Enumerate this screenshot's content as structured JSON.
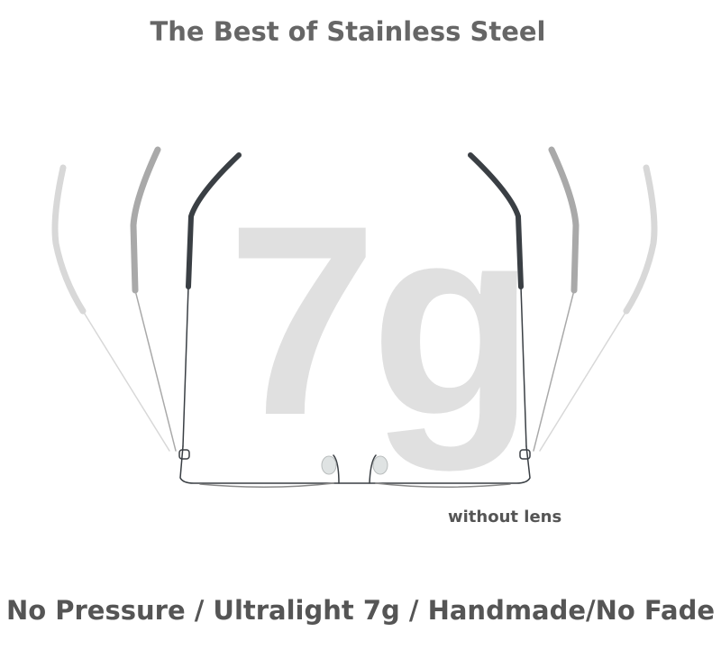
{
  "title": "The Best of Stainless Steel",
  "weight_label": "7g",
  "note": "without lens",
  "footer": "No Pressure / Ultralight 7g / Handmade/No Fade",
  "colors": {
    "title": "#666666",
    "weight": "#e0e0e0",
    "frame": "#3a3f44"
  }
}
